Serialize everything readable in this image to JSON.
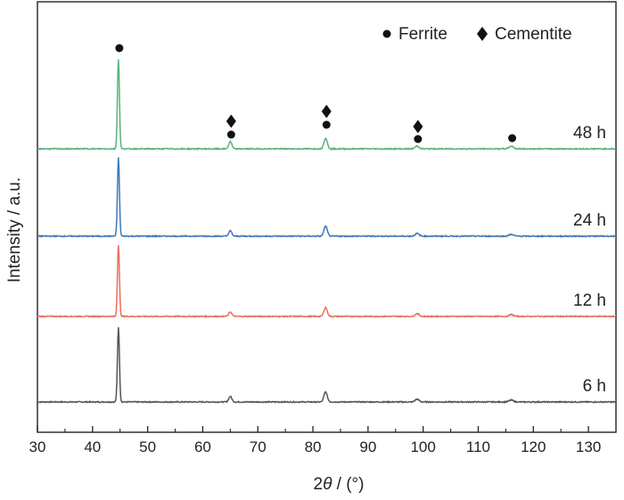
{
  "chart_data": {
    "type": "line",
    "xlabel_prefix": "2",
    "xlabel_symbol": "θ",
    "xlabel_suffix": " / (°)",
    "ylabel": "Intensity / a.u.",
    "xlim": [
      30,
      135
    ],
    "xticks": [
      "30",
      "40",
      "50",
      "60",
      "70",
      "80",
      "90",
      "100",
      "110",
      "120",
      "130"
    ],
    "legend": {
      "position": "top-right",
      "entries": [
        {
          "marker": "circle",
          "label": "Ferrite"
        },
        {
          "marker": "diamond",
          "label": "Cementite"
        }
      ]
    },
    "series": [
      {
        "name": "6 h",
        "color": "#555555",
        "offset": 0,
        "peaks": [
          {
            "x": 44.7,
            "y": 82
          },
          {
            "x": 65.0,
            "y": 6
          },
          {
            "x": 82.3,
            "y": 11
          },
          {
            "x": 98.9,
            "y": 3
          },
          {
            "x": 116.0,
            "y": 2
          }
        ]
      },
      {
        "name": "12 h",
        "color": "#e8705a",
        "offset": 1,
        "peaks": [
          {
            "x": 44.7,
            "y": 79
          },
          {
            "x": 65.0,
            "y": 5
          },
          {
            "x": 82.3,
            "y": 10
          },
          {
            "x": 98.9,
            "y": 3
          },
          {
            "x": 116.0,
            "y": 2
          }
        ]
      },
      {
        "name": "24 h",
        "color": "#3c79b5",
        "offset": 2,
        "peaks": [
          {
            "x": 44.7,
            "y": 87
          },
          {
            "x": 65.0,
            "y": 6
          },
          {
            "x": 82.3,
            "y": 11
          },
          {
            "x": 98.9,
            "y": 3
          },
          {
            "x": 116.0,
            "y": 2
          }
        ]
      },
      {
        "name": "48 h",
        "color": "#5bb27c",
        "offset": 3,
        "peaks": [
          {
            "x": 44.7,
            "y": 100
          },
          {
            "x": 65.0,
            "y": 8
          },
          {
            "x": 82.3,
            "y": 12
          },
          {
            "x": 98.9,
            "y": 3
          },
          {
            "x": 116.0,
            "y": 3
          }
        ]
      }
    ],
    "annotations": [
      {
        "x": 44.7,
        "phases": [
          "circle"
        ]
      },
      {
        "x": 65.0,
        "phases": [
          "circle",
          "diamond"
        ]
      },
      {
        "x": 82.3,
        "phases": [
          "circle",
          "diamond"
        ]
      },
      {
        "x": 98.9,
        "phases": [
          "circle",
          "diamond"
        ]
      },
      {
        "x": 116.0,
        "phases": [
          "circle"
        ]
      }
    ]
  }
}
